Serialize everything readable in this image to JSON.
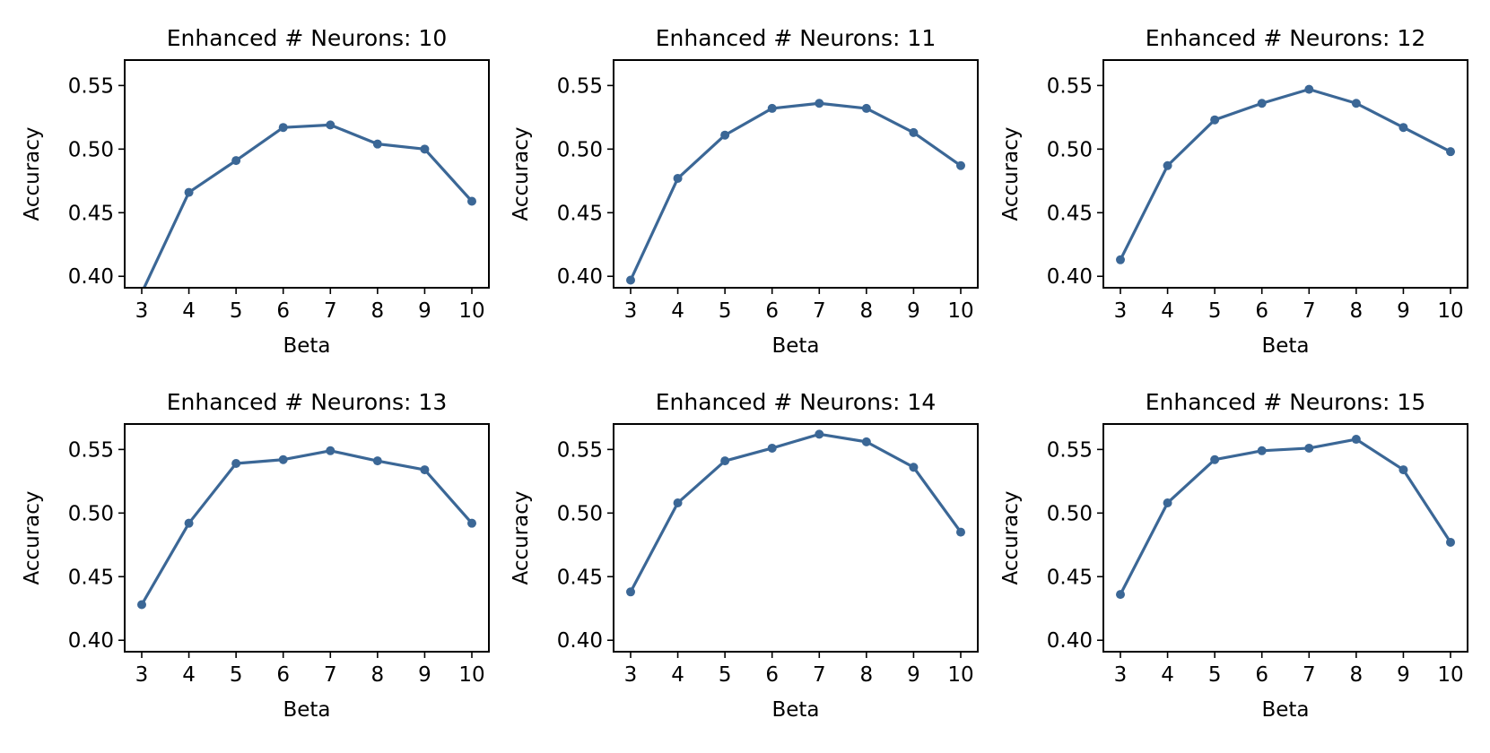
{
  "colors": {
    "series": "#3b6796",
    "axes": "#000000",
    "background": "#ffffff"
  },
  "chart_data": [
    {
      "type": "line",
      "title": "Enhanced # Neurons: 10",
      "xlabel": "Beta",
      "ylabel": "Accuracy",
      "x": [
        3,
        4,
        5,
        6,
        7,
        8,
        9,
        10
      ],
      "x_ticks": [
        "3",
        "4",
        "5",
        "6",
        "7",
        "8",
        "9",
        "10"
      ],
      "y_ticks": [
        "0.40",
        "0.45",
        "0.50",
        "0.55"
      ],
      "ylim": [
        0.391,
        0.57
      ],
      "grid": false,
      "marker": "circle",
      "values": [
        0.387,
        0.466,
        0.491,
        0.517,
        0.519,
        0.504,
        0.5,
        0.459
      ]
    },
    {
      "type": "line",
      "title": "Enhanced # Neurons: 11",
      "xlabel": "Beta",
      "ylabel": "Accuracy",
      "x": [
        3,
        4,
        5,
        6,
        7,
        8,
        9,
        10
      ],
      "x_ticks": [
        "3",
        "4",
        "5",
        "6",
        "7",
        "8",
        "9",
        "10"
      ],
      "y_ticks": [
        "0.40",
        "0.45",
        "0.50",
        "0.55"
      ],
      "ylim": [
        0.391,
        0.57
      ],
      "grid": false,
      "marker": "circle",
      "values": [
        0.397,
        0.477,
        0.511,
        0.532,
        0.536,
        0.532,
        0.513,
        0.487
      ]
    },
    {
      "type": "line",
      "title": "Enhanced # Neurons: 12",
      "xlabel": "Beta",
      "ylabel": "Accuracy",
      "x": [
        3,
        4,
        5,
        6,
        7,
        8,
        9,
        10
      ],
      "x_ticks": [
        "3",
        "4",
        "5",
        "6",
        "7",
        "8",
        "9",
        "10"
      ],
      "y_ticks": [
        "0.40",
        "0.45",
        "0.50",
        "0.55"
      ],
      "ylim": [
        0.391,
        0.57
      ],
      "grid": false,
      "marker": "circle",
      "values": [
        0.413,
        0.487,
        0.523,
        0.536,
        0.547,
        0.536,
        0.517,
        0.498
      ]
    },
    {
      "type": "line",
      "title": "Enhanced # Neurons: 13",
      "xlabel": "Beta",
      "ylabel": "Accuracy",
      "x": [
        3,
        4,
        5,
        6,
        7,
        8,
        9,
        10
      ],
      "x_ticks": [
        "3",
        "4",
        "5",
        "6",
        "7",
        "8",
        "9",
        "10"
      ],
      "y_ticks": [
        "0.40",
        "0.45",
        "0.50",
        "0.55"
      ],
      "ylim": [
        0.391,
        0.57
      ],
      "grid": false,
      "marker": "circle",
      "values": [
        0.428,
        0.492,
        0.539,
        0.542,
        0.549,
        0.541,
        0.534,
        0.492
      ]
    },
    {
      "type": "line",
      "title": "Enhanced # Neurons: 14",
      "xlabel": "Beta",
      "ylabel": "Accuracy",
      "x": [
        3,
        4,
        5,
        6,
        7,
        8,
        9,
        10
      ],
      "x_ticks": [
        "3",
        "4",
        "5",
        "6",
        "7",
        "8",
        "9",
        "10"
      ],
      "y_ticks": [
        "0.40",
        "0.45",
        "0.50",
        "0.55"
      ],
      "ylim": [
        0.391,
        0.57
      ],
      "grid": false,
      "marker": "circle",
      "values": [
        0.438,
        0.508,
        0.541,
        0.551,
        0.562,
        0.556,
        0.536,
        0.485
      ]
    },
    {
      "type": "line",
      "title": "Enhanced # Neurons: 15",
      "xlabel": "Beta",
      "ylabel": "Accuracy",
      "x": [
        3,
        4,
        5,
        6,
        7,
        8,
        9,
        10
      ],
      "x_ticks": [
        "3",
        "4",
        "5",
        "6",
        "7",
        "8",
        "9",
        "10"
      ],
      "y_ticks": [
        "0.40",
        "0.45",
        "0.50",
        "0.55"
      ],
      "ylim": [
        0.391,
        0.57
      ],
      "grid": false,
      "marker": "circle",
      "values": [
        0.436,
        0.508,
        0.542,
        0.549,
        0.551,
        0.558,
        0.534,
        0.477
      ]
    }
  ]
}
